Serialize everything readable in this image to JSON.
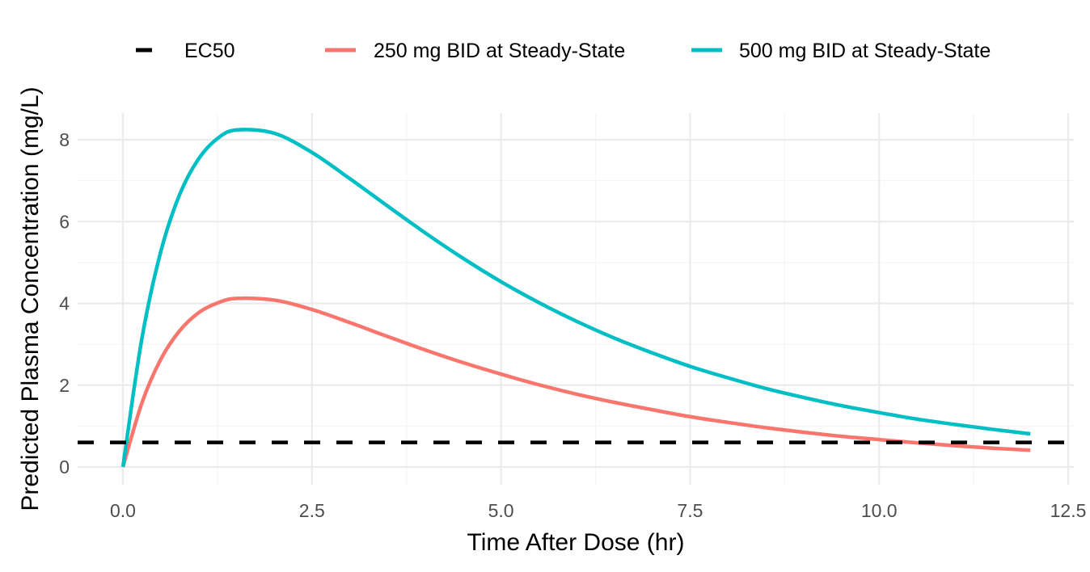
{
  "chart_data": {
    "type": "line",
    "title": "",
    "xlabel": "Time After Dose (hr)",
    "ylabel": "Predicted Plasma Concentration (mg/L)",
    "xlim": [
      -0.3,
      12.55
    ],
    "ylim": [
      -0.4,
      8.75
    ],
    "x_ticks": [
      0.0,
      2.5,
      5.0,
      7.5,
      10.0,
      12.5
    ],
    "x_tick_labels": [
      "0.0",
      "2.5",
      "5.0",
      "7.5",
      "10.0",
      "12.5"
    ],
    "y_ticks": [
      0,
      2,
      4,
      6,
      8
    ],
    "y_tick_labels": [
      "0",
      "2",
      "4",
      "6",
      "8"
    ],
    "grid": true,
    "legend_position": "top",
    "x": [
      0,
      0.25,
      0.5,
      0.75,
      1,
      1.25,
      1.5,
      2,
      2.5,
      3,
      3.5,
      4,
      4.5,
      5,
      5.5,
      6,
      6.5,
      7,
      7.5,
      8,
      8.5,
      9,
      9.5,
      10,
      10.5,
      11,
      11.5,
      12
    ],
    "series": [
      {
        "name": "250 mg BID at Steady-State",
        "color": "#F8766D",
        "style": "solid",
        "values": [
          0,
          1.56,
          2.63,
          3.33,
          3.77,
          4.01,
          4.12,
          4.08,
          3.85,
          3.53,
          3.19,
          2.86,
          2.55,
          2.27,
          2.01,
          1.78,
          1.58,
          1.4,
          1.23,
          1.09,
          0.96,
          0.85,
          0.75,
          0.67,
          0.59,
          0.52,
          0.46,
          0.41
        ]
      },
      {
        "name": "500 mg BID at Steady-State",
        "color": "#00BFC4",
        "style": "solid",
        "values": [
          0,
          3.13,
          5.26,
          6.66,
          7.53,
          8.03,
          8.24,
          8.16,
          7.69,
          7.05,
          6.38,
          5.72,
          5.1,
          4.53,
          4.02,
          3.56,
          3.15,
          2.79,
          2.46,
          2.18,
          1.92,
          1.7,
          1.5,
          1.33,
          1.17,
          1.04,
          0.92,
          0.81
        ]
      }
    ],
    "reference_lines": [
      {
        "name": "EC50",
        "orientation": "horizontal",
        "value": 0.6,
        "color": "#000000",
        "style": "dashed"
      }
    ],
    "legend": [
      {
        "label": "EC50",
        "color": "#000000"
      },
      {
        "label": "250 mg BID at Steady-State",
        "color": "#F8766D"
      },
      {
        "label": "500 mg BID at Steady-State",
        "color": "#00BFC4"
      }
    ]
  }
}
